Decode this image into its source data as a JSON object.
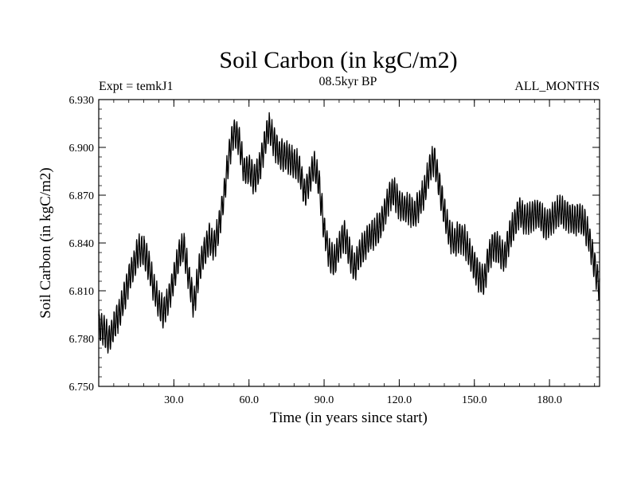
{
  "chart_data": {
    "type": "line",
    "title": "Soil Carbon (in kgC/m2)",
    "subtitle_left": "Expt = temkJ1",
    "subtitle_center": "08.5kyr BP",
    "subtitle_right": "ALL_MONTHS",
    "xlabel": "Time (in years since start)",
    "ylabel": "Soil Carbon (in kgC/m2)",
    "xlim": [
      0,
      200
    ],
    "ylim": [
      6.75,
      6.93
    ],
    "xticks": [
      30,
      60,
      90,
      120,
      150,
      180
    ],
    "xtick_labels": [
      "30.0",
      "60.0",
      "90.0",
      "120.0",
      "150.0",
      "180.0"
    ],
    "yticks": [
      6.75,
      6.78,
      6.81,
      6.84,
      6.87,
      6.9,
      6.93
    ],
    "ytick_labels": [
      "6.750",
      "6.780",
      "6.810",
      "6.840",
      "6.870",
      "6.900",
      "6.930"
    ],
    "series": [
      {
        "name": "Soil Carbon",
        "color": "#000000",
        "seasonal_amplitude": 0.009,
        "x": [
          0,
          2,
          4,
          6,
          8,
          10,
          12,
          14,
          16,
          18,
          20,
          22,
          24,
          26,
          28,
          30,
          32,
          34,
          36,
          38,
          40,
          42,
          44,
          46,
          48,
          50,
          52,
          54,
          56,
          58,
          60,
          62,
          64,
          66,
          68,
          70,
          72,
          74,
          76,
          78,
          80,
          82,
          84,
          86,
          88,
          90,
          92,
          94,
          96,
          98,
          100,
          102,
          104,
          106,
          108,
          110,
          112,
          114,
          116,
          118,
          120,
          122,
          124,
          126,
          128,
          130,
          132,
          134,
          136,
          138,
          140,
          142,
          144,
          146,
          148,
          150,
          152,
          154,
          156,
          158,
          160,
          162,
          164,
          166,
          168,
          170,
          172,
          174,
          176,
          178,
          180,
          182,
          184,
          186,
          188,
          190,
          192,
          194,
          196,
          198,
          200
        ],
        "values": [
          6.788,
          6.786,
          6.779,
          6.787,
          6.795,
          6.805,
          6.817,
          6.826,
          6.836,
          6.835,
          6.826,
          6.812,
          6.802,
          6.796,
          6.806,
          6.818,
          6.832,
          6.838,
          6.818,
          6.801,
          6.822,
          6.834,
          6.843,
          6.838,
          6.85,
          6.87,
          6.895,
          6.91,
          6.905,
          6.885,
          6.887,
          6.88,
          6.886,
          6.9,
          6.913,
          6.903,
          6.896,
          6.895,
          6.893,
          6.89,
          6.888,
          6.872,
          6.878,
          6.889,
          6.877,
          6.849,
          6.833,
          6.828,
          6.838,
          6.845,
          6.835,
          6.824,
          6.833,
          6.838,
          6.844,
          6.846,
          6.85,
          6.858,
          6.869,
          6.872,
          6.864,
          6.862,
          6.861,
          6.858,
          6.864,
          6.872,
          6.886,
          6.893,
          6.876,
          6.86,
          6.845,
          6.841,
          6.844,
          6.842,
          6.833,
          6.826,
          6.818,
          6.817,
          6.833,
          6.838,
          6.836,
          6.83,
          6.844,
          6.852,
          6.86,
          6.855,
          6.856,
          6.858,
          6.858,
          6.852,
          6.853,
          6.857,
          6.861,
          6.858,
          6.856,
          6.854,
          6.856,
          6.852,
          6.842,
          6.826,
          6.812
        ]
      }
    ]
  }
}
